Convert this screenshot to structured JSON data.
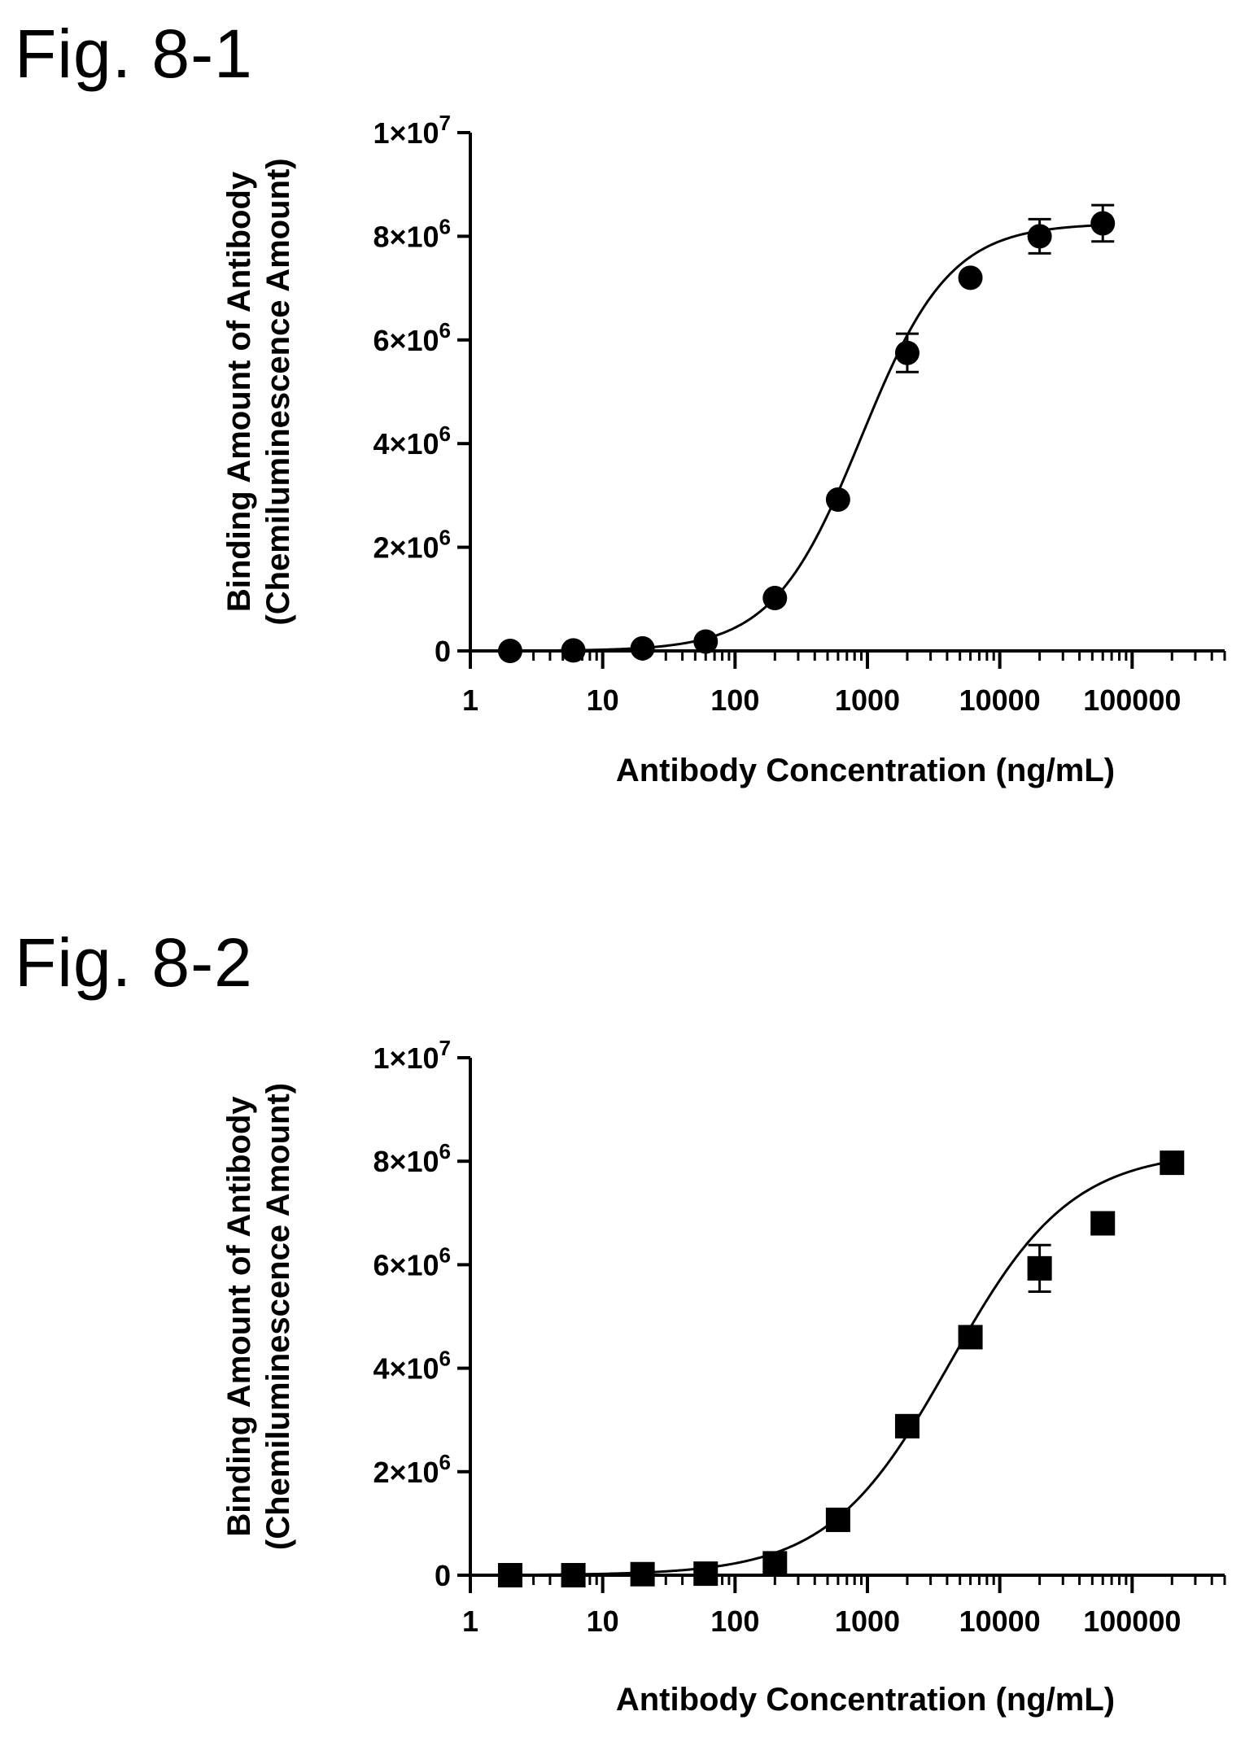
{
  "figures": [
    {
      "title": "Fig. 8-1"
    },
    {
      "title": "Fig. 8-2"
    }
  ],
  "chart_data": [
    {
      "type": "scatter",
      "marker": "circle",
      "xscale": "log",
      "xlim": [
        1,
        500000
      ],
      "ylim": [
        0,
        10000000
      ],
      "xlabel": "Antibody Concentration (ng/mL)",
      "ylabel": [
        "Binding Amount of Antibody",
        "(Chemiluminescence Amount)"
      ],
      "x_ticks": [
        {
          "value": 1,
          "label": "1"
        },
        {
          "value": 10,
          "label": "10"
        },
        {
          "value": 100,
          "label": "100"
        },
        {
          "value": 1000,
          "label": "1000"
        },
        {
          "value": 10000,
          "label": "10000"
        },
        {
          "value": 100000,
          "label": "100000"
        }
      ],
      "y_ticks": [
        {
          "value": 0,
          "label": "0",
          "sup": ""
        },
        {
          "value": 2000000,
          "label": "2×10",
          "sup": "6"
        },
        {
          "value": 4000000,
          "label": "4×10",
          "sup": "6"
        },
        {
          "value": 6000000,
          "label": "6×10",
          "sup": "6"
        },
        {
          "value": 8000000,
          "label": "8×10",
          "sup": "6"
        },
        {
          "value": 10000000,
          "label": "1×10",
          "sup": "7"
        }
      ],
      "points": [
        {
          "x": 2,
          "y": 0,
          "err": 0
        },
        {
          "x": 6,
          "y": 10000,
          "err": 0
        },
        {
          "x": 20,
          "y": 50000,
          "err": 0
        },
        {
          "x": 60,
          "y": 180000,
          "err": 0
        },
        {
          "x": 200,
          "y": 1020000,
          "err": 0
        },
        {
          "x": 600,
          "y": 2920000,
          "err": 0
        },
        {
          "x": 2000,
          "y": 5750000,
          "err": 370000
        },
        {
          "x": 6000,
          "y": 7200000,
          "err": 0
        },
        {
          "x": 20000,
          "y": 8000000,
          "err": 330000
        },
        {
          "x": 60000,
          "y": 8250000,
          "err": 350000
        }
      ],
      "fit": {
        "bottom": 0,
        "top": 8250000,
        "ec50": 900,
        "hill": 1.3
      }
    },
    {
      "type": "scatter",
      "marker": "square",
      "xscale": "log",
      "xlim": [
        1,
        500000
      ],
      "ylim": [
        0,
        10000000
      ],
      "xlabel": "Antibody Concentration (ng/mL)",
      "ylabel": [
        "Binding Amount of Antibody",
        "(Chemiluminescence Amount)"
      ],
      "x_ticks": [
        {
          "value": 1,
          "label": "1"
        },
        {
          "value": 10,
          "label": "10"
        },
        {
          "value": 100,
          "label": "100"
        },
        {
          "value": 1000,
          "label": "1000"
        },
        {
          "value": 10000,
          "label": "10000"
        },
        {
          "value": 100000,
          "label": "100000"
        }
      ],
      "y_ticks": [
        {
          "value": 0,
          "label": "0",
          "sup": ""
        },
        {
          "value": 2000000,
          "label": "2×10",
          "sup": "6"
        },
        {
          "value": 4000000,
          "label": "4×10",
          "sup": "6"
        },
        {
          "value": 6000000,
          "label": "6×10",
          "sup": "6"
        },
        {
          "value": 8000000,
          "label": "8×10",
          "sup": "6"
        },
        {
          "value": 10000000,
          "label": "1×10",
          "sup": "7"
        }
      ],
      "points": [
        {
          "x": 2,
          "y": 0,
          "err": 0
        },
        {
          "x": 6,
          "y": 0,
          "err": 0
        },
        {
          "x": 20,
          "y": 20000,
          "err": 0
        },
        {
          "x": 60,
          "y": 30000,
          "err": 0
        },
        {
          "x": 200,
          "y": 230000,
          "err": 0
        },
        {
          "x": 600,
          "y": 1070000,
          "err": 0
        },
        {
          "x": 2000,
          "y": 2880000,
          "err": 0
        },
        {
          "x": 6000,
          "y": 4600000,
          "err": 0
        },
        {
          "x": 20000,
          "y": 5930000,
          "err": 450000
        },
        {
          "x": 60000,
          "y": 6800000,
          "err": 0
        },
        {
          "x": 200000,
          "y": 7970000,
          "err": 0
        }
      ],
      "fit": {
        "bottom": 0,
        "top": 8200000,
        "ec50": 4200,
        "hill": 0.95
      }
    }
  ]
}
